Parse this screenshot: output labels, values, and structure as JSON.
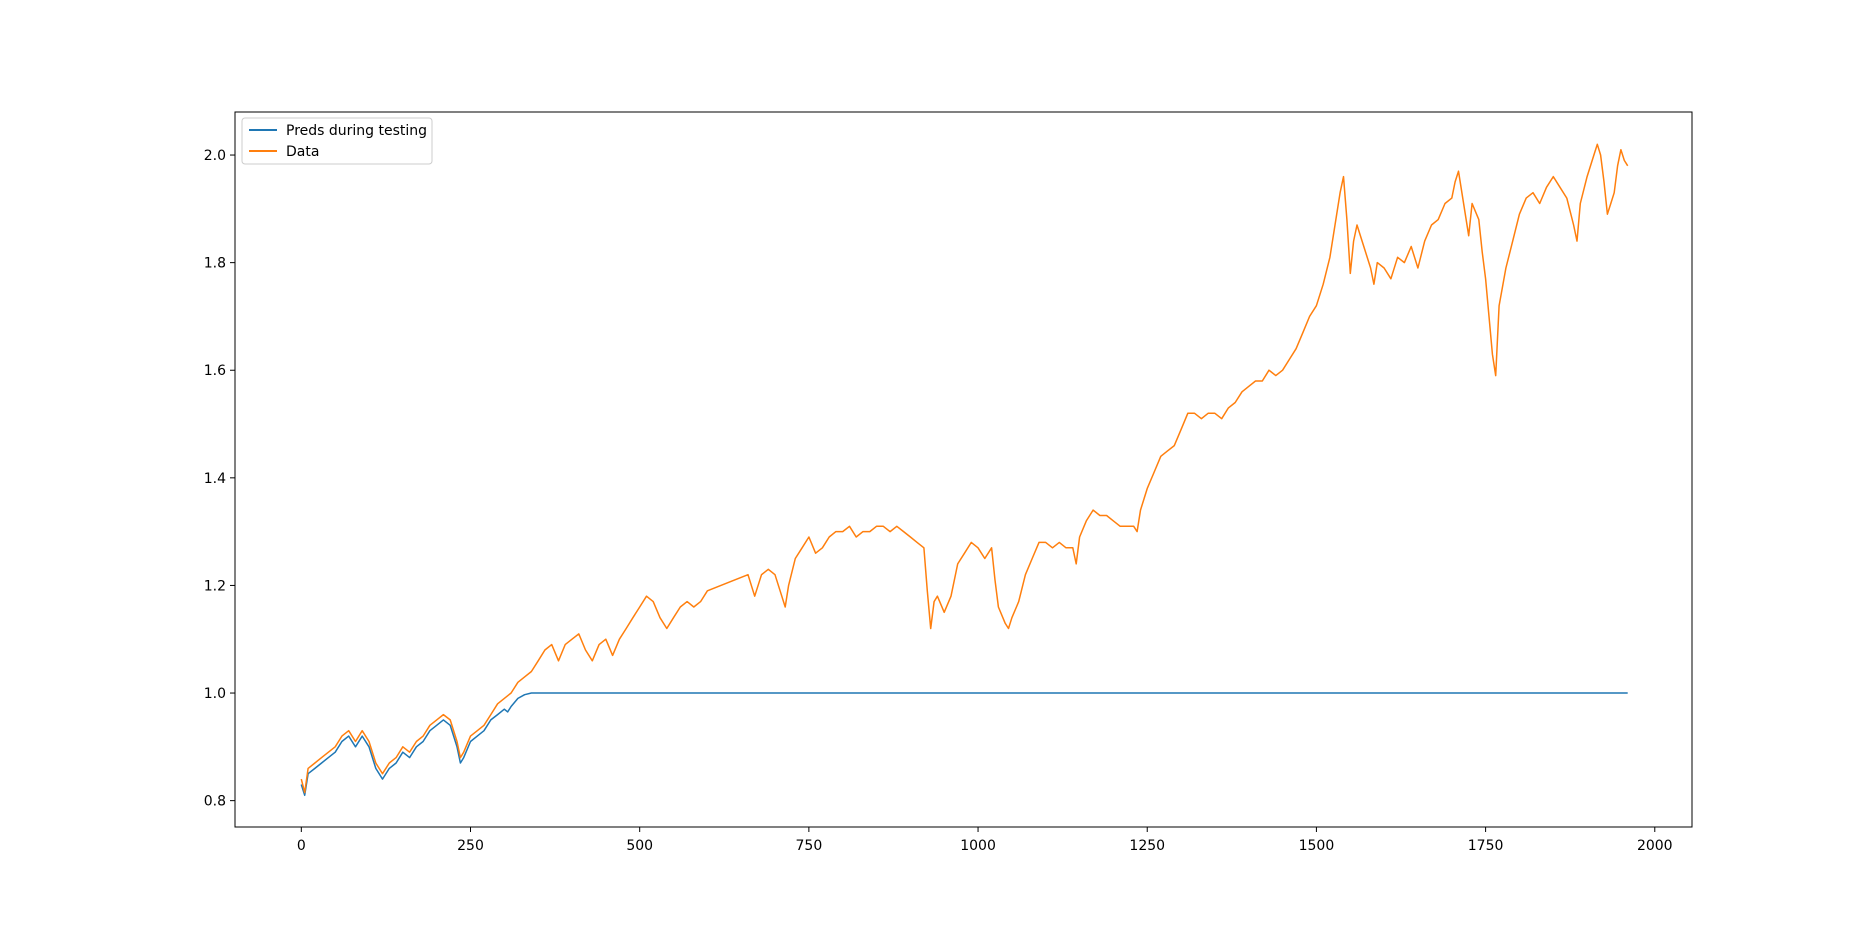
{
  "chart_data": {
    "type": "line",
    "title": "",
    "xlabel": "",
    "ylabel": "",
    "xlim": [
      -98,
      2055
    ],
    "ylim": [
      0.751,
      2.08
    ],
    "x_ticks": [
      0,
      250,
      500,
      750,
      1000,
      1250,
      1500,
      1750,
      2000
    ],
    "y_ticks": [
      0.8,
      1.0,
      1.2,
      1.4,
      1.6,
      1.8,
      2.0
    ],
    "grid": false,
    "legend_position": "upper-left",
    "series": [
      {
        "name": "Preds during testing",
        "color": "#1f77b4",
        "points": [
          [
            0,
            0.83
          ],
          [
            5,
            0.81
          ],
          [
            10,
            0.85
          ],
          [
            20,
            0.86
          ],
          [
            30,
            0.87
          ],
          [
            40,
            0.88
          ],
          [
            50,
            0.89
          ],
          [
            60,
            0.91
          ],
          [
            70,
            0.92
          ],
          [
            80,
            0.9
          ],
          [
            90,
            0.92
          ],
          [
            100,
            0.9
          ],
          [
            110,
            0.86
          ],
          [
            120,
            0.84
          ],
          [
            130,
            0.86
          ],
          [
            140,
            0.87
          ],
          [
            150,
            0.89
          ],
          [
            160,
            0.88
          ],
          [
            170,
            0.9
          ],
          [
            180,
            0.91
          ],
          [
            190,
            0.93
          ],
          [
            200,
            0.94
          ],
          [
            210,
            0.95
          ],
          [
            220,
            0.94
          ],
          [
            230,
            0.9
          ],
          [
            235,
            0.87
          ],
          [
            240,
            0.88
          ],
          [
            250,
            0.91
          ],
          [
            260,
            0.92
          ],
          [
            270,
            0.93
          ],
          [
            280,
            0.95
          ],
          [
            290,
            0.96
          ],
          [
            300,
            0.97
          ],
          [
            305,
            0.965
          ],
          [
            310,
            0.975
          ],
          [
            320,
            0.99
          ],
          [
            330,
            0.997
          ],
          [
            340,
            1.0
          ],
          [
            400,
            1.0
          ],
          [
            600,
            1.0
          ],
          [
            800,
            1.0
          ],
          [
            1000,
            1.0
          ],
          [
            1200,
            1.0
          ],
          [
            1400,
            1.0
          ],
          [
            1600,
            1.0
          ],
          [
            1800,
            1.0
          ],
          [
            1960,
            1.0
          ]
        ]
      },
      {
        "name": "Data",
        "color": "#ff7f0e",
        "points": [
          [
            0,
            0.84
          ],
          [
            5,
            0.815
          ],
          [
            10,
            0.86
          ],
          [
            20,
            0.87
          ],
          [
            30,
            0.88
          ],
          [
            40,
            0.89
          ],
          [
            50,
            0.9
          ],
          [
            60,
            0.92
          ],
          [
            70,
            0.93
          ],
          [
            80,
            0.91
          ],
          [
            90,
            0.93
          ],
          [
            100,
            0.91
          ],
          [
            110,
            0.87
          ],
          [
            120,
            0.85
          ],
          [
            130,
            0.87
          ],
          [
            140,
            0.88
          ],
          [
            150,
            0.9
          ],
          [
            160,
            0.89
          ],
          [
            170,
            0.91
          ],
          [
            180,
            0.92
          ],
          [
            190,
            0.94
          ],
          [
            200,
            0.95
          ],
          [
            210,
            0.96
          ],
          [
            220,
            0.95
          ],
          [
            230,
            0.91
          ],
          [
            235,
            0.88
          ],
          [
            240,
            0.89
          ],
          [
            250,
            0.92
          ],
          [
            260,
            0.93
          ],
          [
            270,
            0.94
          ],
          [
            280,
            0.96
          ],
          [
            290,
            0.98
          ],
          [
            300,
            0.99
          ],
          [
            310,
            1.0
          ],
          [
            320,
            1.02
          ],
          [
            330,
            1.03
          ],
          [
            340,
            1.04
          ],
          [
            350,
            1.06
          ],
          [
            360,
            1.08
          ],
          [
            370,
            1.09
          ],
          [
            380,
            1.06
          ],
          [
            390,
            1.09
          ],
          [
            400,
            1.1
          ],
          [
            410,
            1.11
          ],
          [
            420,
            1.08
          ],
          [
            430,
            1.06
          ],
          [
            440,
            1.09
          ],
          [
            450,
            1.1
          ],
          [
            460,
            1.07
          ],
          [
            470,
            1.1
          ],
          [
            480,
            1.12
          ],
          [
            490,
            1.14
          ],
          [
            500,
            1.16
          ],
          [
            510,
            1.18
          ],
          [
            520,
            1.17
          ],
          [
            530,
            1.14
          ],
          [
            540,
            1.12
          ],
          [
            550,
            1.14
          ],
          [
            560,
            1.16
          ],
          [
            570,
            1.17
          ],
          [
            580,
            1.16
          ],
          [
            590,
            1.17
          ],
          [
            600,
            1.19
          ],
          [
            620,
            1.2
          ],
          [
            640,
            1.21
          ],
          [
            660,
            1.22
          ],
          [
            670,
            1.18
          ],
          [
            680,
            1.22
          ],
          [
            690,
            1.23
          ],
          [
            700,
            1.22
          ],
          [
            710,
            1.18
          ],
          [
            715,
            1.16
          ],
          [
            720,
            1.2
          ],
          [
            730,
            1.25
          ],
          [
            740,
            1.27
          ],
          [
            750,
            1.29
          ],
          [
            760,
            1.26
          ],
          [
            770,
            1.27
          ],
          [
            780,
            1.29
          ],
          [
            790,
            1.3
          ],
          [
            800,
            1.3
          ],
          [
            810,
            1.31
          ],
          [
            820,
            1.29
          ],
          [
            830,
            1.3
          ],
          [
            840,
            1.3
          ],
          [
            850,
            1.31
          ],
          [
            860,
            1.31
          ],
          [
            870,
            1.3
          ],
          [
            880,
            1.31
          ],
          [
            890,
            1.3
          ],
          [
            900,
            1.29
          ],
          [
            910,
            1.28
          ],
          [
            920,
            1.27
          ],
          [
            925,
            1.19
          ],
          [
            930,
            1.12
          ],
          [
            935,
            1.17
          ],
          [
            940,
            1.18
          ],
          [
            950,
            1.15
          ],
          [
            960,
            1.18
          ],
          [
            970,
            1.24
          ],
          [
            980,
            1.26
          ],
          [
            990,
            1.28
          ],
          [
            1000,
            1.27
          ],
          [
            1010,
            1.25
          ],
          [
            1020,
            1.27
          ],
          [
            1025,
            1.21
          ],
          [
            1030,
            1.16
          ],
          [
            1040,
            1.13
          ],
          [
            1045,
            1.12
          ],
          [
            1050,
            1.14
          ],
          [
            1060,
            1.17
          ],
          [
            1070,
            1.22
          ],
          [
            1080,
            1.25
          ],
          [
            1090,
            1.28
          ],
          [
            1100,
            1.28
          ],
          [
            1110,
            1.27
          ],
          [
            1120,
            1.28
          ],
          [
            1130,
            1.27
          ],
          [
            1140,
            1.27
          ],
          [
            1145,
            1.24
          ],
          [
            1150,
            1.29
          ],
          [
            1160,
            1.32
          ],
          [
            1170,
            1.34
          ],
          [
            1180,
            1.33
          ],
          [
            1190,
            1.33
          ],
          [
            1200,
            1.32
          ],
          [
            1210,
            1.31
          ],
          [
            1220,
            1.31
          ],
          [
            1230,
            1.31
          ],
          [
            1235,
            1.3
          ],
          [
            1240,
            1.34
          ],
          [
            1250,
            1.38
          ],
          [
            1260,
            1.41
          ],
          [
            1270,
            1.44
          ],
          [
            1280,
            1.45
          ],
          [
            1290,
            1.46
          ],
          [
            1300,
            1.49
          ],
          [
            1310,
            1.52
          ],
          [
            1320,
            1.52
          ],
          [
            1330,
            1.51
          ],
          [
            1340,
            1.52
          ],
          [
            1350,
            1.52
          ],
          [
            1360,
            1.51
          ],
          [
            1370,
            1.53
          ],
          [
            1380,
            1.54
          ],
          [
            1390,
            1.56
          ],
          [
            1400,
            1.57
          ],
          [
            1410,
            1.58
          ],
          [
            1420,
            1.58
          ],
          [
            1430,
            1.6
          ],
          [
            1440,
            1.59
          ],
          [
            1450,
            1.6
          ],
          [
            1460,
            1.62
          ],
          [
            1470,
            1.64
          ],
          [
            1480,
            1.67
          ],
          [
            1490,
            1.7
          ],
          [
            1500,
            1.72
          ],
          [
            1510,
            1.76
          ],
          [
            1520,
            1.81
          ],
          [
            1530,
            1.89
          ],
          [
            1535,
            1.93
          ],
          [
            1540,
            1.96
          ],
          [
            1545,
            1.88
          ],
          [
            1550,
            1.78
          ],
          [
            1555,
            1.84
          ],
          [
            1560,
            1.87
          ],
          [
            1570,
            1.83
          ],
          [
            1580,
            1.79
          ],
          [
            1585,
            1.76
          ],
          [
            1590,
            1.8
          ],
          [
            1600,
            1.79
          ],
          [
            1610,
            1.77
          ],
          [
            1620,
            1.81
          ],
          [
            1630,
            1.8
          ],
          [
            1640,
            1.83
          ],
          [
            1650,
            1.79
          ],
          [
            1660,
            1.84
          ],
          [
            1670,
            1.87
          ],
          [
            1680,
            1.88
          ],
          [
            1690,
            1.91
          ],
          [
            1700,
            1.92
          ],
          [
            1705,
            1.95
          ],
          [
            1710,
            1.97
          ],
          [
            1715,
            1.93
          ],
          [
            1720,
            1.89
          ],
          [
            1725,
            1.85
          ],
          [
            1730,
            1.91
          ],
          [
            1740,
            1.88
          ],
          [
            1745,
            1.82
          ],
          [
            1750,
            1.77
          ],
          [
            1755,
            1.7
          ],
          [
            1760,
            1.63
          ],
          [
            1765,
            1.59
          ],
          [
            1770,
            1.72
          ],
          [
            1780,
            1.79
          ],
          [
            1790,
            1.84
          ],
          [
            1800,
            1.89
          ],
          [
            1810,
            1.92
          ],
          [
            1820,
            1.93
          ],
          [
            1830,
            1.91
          ],
          [
            1840,
            1.94
          ],
          [
            1850,
            1.96
          ],
          [
            1860,
            1.94
          ],
          [
            1870,
            1.92
          ],
          [
            1880,
            1.87
          ],
          [
            1885,
            1.84
          ],
          [
            1890,
            1.91
          ],
          [
            1900,
            1.96
          ],
          [
            1910,
            2.0
          ],
          [
            1915,
            2.02
          ],
          [
            1920,
            2.0
          ],
          [
            1925,
            1.95
          ],
          [
            1930,
            1.89
          ],
          [
            1935,
            1.91
          ],
          [
            1940,
            1.93
          ],
          [
            1945,
            1.98
          ],
          [
            1950,
            2.01
          ],
          [
            1955,
            1.99
          ],
          [
            1960,
            1.98
          ]
        ]
      }
    ]
  }
}
